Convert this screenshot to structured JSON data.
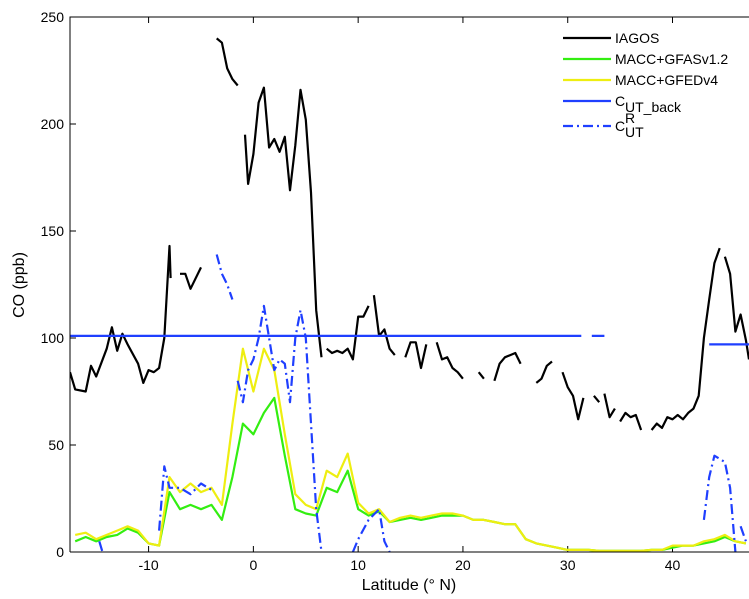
{
  "chart_data": {
    "type": "line",
    "x_label": "Latitude (° N)",
    "y_label": "CO (ppb)",
    "xlim": [
      -17.5,
      47.3
    ],
    "ylim": [
      0,
      250
    ],
    "xticks": [
      -10,
      0,
      10,
      20,
      30,
      40
    ],
    "yticks": [
      0,
      50,
      100,
      150,
      200,
      250
    ],
    "legend": "upper right",
    "series": [
      {
        "name": "IAGOS",
        "color": "#000000",
        "linestyle": "solid",
        "x": [
          -17.5,
          -17,
          -16,
          -15.5,
          -15,
          -14,
          -13.5,
          -13,
          -12.5,
          -12,
          -11,
          -10.5,
          -10,
          -9.5,
          -9,
          -8.5,
          -8,
          -7.9,
          -7.8,
          -7,
          -6.5,
          -6,
          -5,
          -4.2,
          -3.5,
          -3,
          -2.5,
          -2,
          -1.5,
          -1.2,
          -0.8,
          -0.5,
          0,
          0.5,
          1,
          1.5,
          2,
          2.5,
          3,
          3.5,
          4,
          4.5,
          5,
          5.5,
          6,
          6.5,
          6.7,
          7,
          7.5,
          8,
          8.5,
          9,
          9.5,
          10,
          10.5,
          11,
          11.2,
          11.5,
          12,
          12.5,
          13,
          13.5,
          14,
          14.5,
          15,
          15.5,
          16,
          16.5,
          17,
          17.5,
          18,
          18.5,
          19,
          19.5,
          20,
          20.7,
          21.5,
          22,
          22.5,
          23,
          23.5,
          24,
          25,
          25.5,
          25.7,
          26,
          26.5,
          27,
          27.5,
          28,
          28.5,
          29,
          29.5,
          30,
          30.5,
          31,
          31.5,
          32,
          32.5,
          33,
          33.2,
          33.5,
          34,
          34.5,
          34.7,
          35,
          35.5,
          36,
          36.5,
          37,
          37.5,
          38,
          38.5,
          39,
          39.5,
          40,
          40.5,
          41,
          41.5,
          42,
          42.5,
          43,
          43.5,
          44,
          44.5,
          44.7,
          45,
          45.5,
          46,
          46.5,
          47,
          47.3
        ],
        "values": [
          84,
          76,
          75,
          87,
          82,
          95,
          105,
          94,
          102,
          97,
          88,
          79,
          85,
          84,
          86,
          100,
          143,
          128,
          null,
          130,
          130,
          123,
          133,
          null,
          240,
          238,
          226,
          221,
          218,
          null,
          195,
          172,
          186,
          210,
          217,
          189,
          193,
          187,
          194,
          169,
          190,
          216,
          202,
          168,
          113,
          91,
          null,
          95,
          93,
          94,
          93,
          95,
          90,
          110,
          110,
          115,
          null,
          120,
          101,
          104,
          95,
          92,
          null,
          91,
          98,
          98,
          86,
          97,
          null,
          98,
          90,
          91,
          86,
          84,
          81,
          null,
          84,
          81,
          null,
          80,
          88,
          91,
          93,
          88,
          null,
          89,
          null,
          79,
          81,
          87,
          89,
          null,
          84,
          77,
          73,
          62,
          72,
          null,
          73,
          70,
          null,
          74,
          63,
          67,
          null,
          61,
          65,
          63,
          64,
          57,
          null,
          57,
          60,
          58,
          63,
          62,
          64,
          62,
          65,
          67,
          73,
          100,
          118,
          135,
          142,
          null,
          138,
          130,
          103,
          111,
          99,
          90
        ]
      },
      {
        "name": "MACC+GFASv1.2",
        "color": "#33ee11",
        "linestyle": "solid",
        "x": [
          -17,
          -16,
          -15,
          -14,
          -13,
          -12,
          -11,
          -10,
          -9,
          -8,
          -7,
          -6,
          -5,
          -4,
          -3,
          -2,
          -1,
          0,
          1,
          2,
          3,
          4,
          5,
          6,
          7,
          8,
          9,
          10,
          11,
          12,
          13,
          14,
          15,
          16,
          17,
          18,
          19,
          20,
          21,
          22,
          23,
          24,
          25,
          26,
          27,
          28,
          29,
          30,
          31,
          32,
          33,
          34,
          35,
          36,
          37,
          38,
          39,
          40,
          41,
          42,
          43,
          44,
          45,
          46,
          47
        ],
        "values": [
          5,
          7,
          5,
          7,
          8,
          11,
          9,
          4,
          3,
          28,
          20,
          22,
          20,
          22,
          15,
          35,
          60,
          55,
          65,
          72,
          45,
          20,
          18,
          17,
          30,
          28,
          38,
          20,
          17,
          19,
          14,
          15,
          16,
          15,
          16,
          17,
          17,
          17,
          15,
          15,
          14,
          13,
          13,
          6,
          4,
          3,
          2,
          1,
          1,
          1,
          0.5,
          0.5,
          0.5,
          0.5,
          0.5,
          1,
          1,
          2,
          3,
          3,
          4,
          5,
          7,
          5,
          4
        ]
      },
      {
        "name": "MACC+GFEDv4",
        "color": "#eeee11",
        "linestyle": "solid",
        "x": [
          -17,
          -16,
          -15,
          -14,
          -13,
          -12,
          -11,
          -10,
          -9,
          -8,
          -7,
          -6,
          -5,
          -4,
          -3,
          -2,
          -1,
          0,
          1,
          2,
          3,
          4,
          5,
          6,
          7,
          8,
          9,
          10,
          11,
          12,
          13,
          14,
          15,
          16,
          17,
          18,
          19,
          20,
          21,
          22,
          23,
          24,
          25,
          26,
          27,
          28,
          29,
          30,
          31,
          32,
          33,
          34,
          35,
          36,
          37,
          38,
          39,
          40,
          41,
          42,
          43,
          44,
          45,
          46,
          47
        ],
        "values": [
          8,
          9,
          6,
          8,
          10,
          12,
          10,
          4,
          3,
          35,
          28,
          32,
          28,
          30,
          22,
          60,
          95,
          75,
          95,
          85,
          55,
          27,
          22,
          20,
          38,
          35,
          46,
          23,
          18,
          20,
          14,
          16,
          17,
          16,
          17,
          18,
          18,
          17,
          15,
          15,
          14,
          13,
          13,
          6,
          4,
          3,
          2,
          1,
          1,
          1,
          0.5,
          0.5,
          0.5,
          0.5,
          0.5,
          1,
          1,
          3,
          3,
          3,
          5,
          6,
          8,
          5,
          4
        ]
      },
      {
        "name": "C",
        "name_sub": "UT_back",
        "color": "#1f3fff",
        "linestyle": "solid",
        "x": [
          -17.5,
          31.3,
          31.8,
          32.3,
          33.5,
          38,
          43.5,
          47.3
        ],
        "values": [
          101,
          101,
          null,
          101,
          101,
          null,
          97,
          97
        ]
      },
      {
        "name": "C",
        "name_sup": "R",
        "name_sub": "UT",
        "color": "#1f3fff",
        "linestyle": "dashdot",
        "x": [
          -14.7,
          -14.4,
          -12,
          -9,
          -8.5,
          -8,
          -7,
          -6,
          -5,
          -4,
          -3.7,
          -3.5,
          -3,
          -2.5,
          -2,
          -1.8,
          -1.5,
          -1,
          -0.5,
          0,
          0.5,
          1,
          1.5,
          2,
          2.5,
          3,
          3.5,
          4,
          4.5,
          5,
          5.5,
          6,
          6.5,
          8,
          9.5,
          10,
          11,
          12,
          12.5,
          13,
          20,
          43,
          43.5,
          44,
          45,
          45.5,
          46,
          46.2,
          46.5,
          47
        ],
        "values": [
          5,
          0,
          null,
          10,
          40,
          30,
          30,
          27,
          32,
          29,
          null,
          139,
          130,
          125,
          118,
          null,
          80,
          70,
          85,
          90,
          100,
          115,
          100,
          85,
          90,
          88,
          70,
          100,
          113,
          100,
          60,
          20,
          0,
          null,
          0,
          6,
          15,
          20,
          5,
          0,
          null,
          15,
          35,
          45,
          42,
          30,
          0,
          null,
          12,
          5
        ]
      }
    ]
  }
}
